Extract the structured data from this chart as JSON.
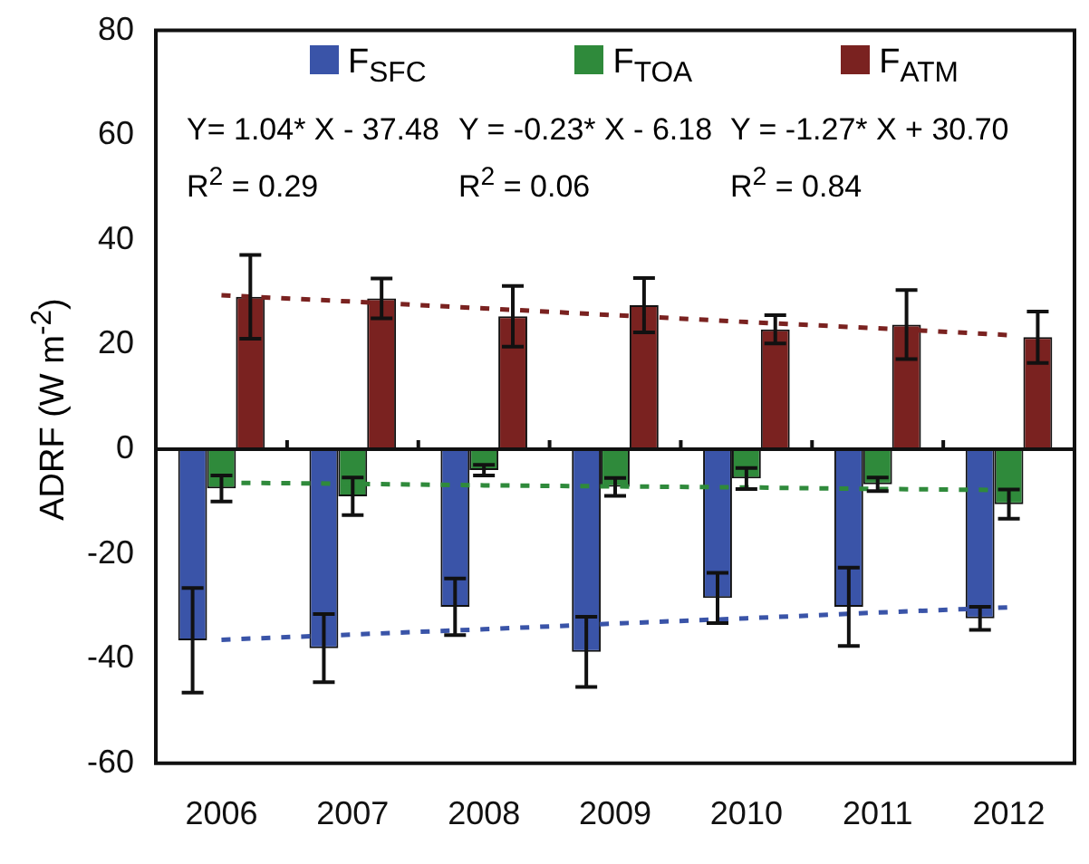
{
  "chart_data": {
    "type": "bar",
    "ylabel": "ADRF (W m$^{-2}$)",
    "categories": [
      "2006",
      "2007",
      "2008",
      "2009",
      "2010",
      "2011",
      "2012"
    ],
    "series": [
      {
        "name": "F$_{SFC}$",
        "color": "#3a54a8",
        "values": [
          -36.5,
          -38,
          -30.1,
          -38.7,
          -28.4,
          -30.1,
          -32.3
        ],
        "errors": [
          10,
          6.5,
          5.4,
          6.7,
          4.8,
          7.5,
          2.2
        ]
      },
      {
        "name": "F$_{TOA}$",
        "color": "#2f8a3b",
        "values": [
          -7.5,
          -9,
          -4,
          -7.2,
          -5.6,
          -6.7,
          -10.5
        ],
        "errors": [
          2.5,
          3.6,
          1,
          1.7,
          2,
          1.3,
          2.8
        ]
      },
      {
        "name": "F$_{ATM}$",
        "color": "#7a2220",
        "values": [
          29.1,
          28.8,
          25.4,
          27.5,
          22.9,
          23.8,
          21.4
        ],
        "errors": [
          8,
          3.8,
          5.8,
          5.2,
          2.7,
          6.6,
          4.9
        ]
      },
      {
        "type": "line",
        "color": "#3a54a8",
        "line_style": "dashed",
        "values": [
          -36.4,
          -35.4,
          -34.4,
          -33.3,
          -32.3,
          -31.2,
          -30.2
        ]
      },
      {
        "type": "line",
        "color": "#2f8a3b",
        "line_style": "dashed",
        "values": [
          -6.4,
          -6.6,
          -6.9,
          -7.1,
          -7.3,
          -7.6,
          -7.8
        ]
      },
      {
        "type": "line",
        "color": "#7a2220",
        "line_style": "dashed",
        "values": [
          29.4,
          28.2,
          26.9,
          25.6,
          24.3,
          23.1,
          21.8
        ]
      }
    ],
    "ylim": [
      -60,
      80
    ],
    "yticks": [
      -60,
      -40,
      -20,
      0,
      20,
      40,
      60,
      80
    ],
    "legend": "top",
    "annotations": [
      "Y= 1.04* X - 37.48",
      "Y = -0.23* X - 6.18",
      "Y = -1.27* X + 30.70",
      "R$^{2}$ = 0.29",
      "R$^{2}$ = 0.06",
      "R$^{2}$ = 0.84"
    ]
  }
}
